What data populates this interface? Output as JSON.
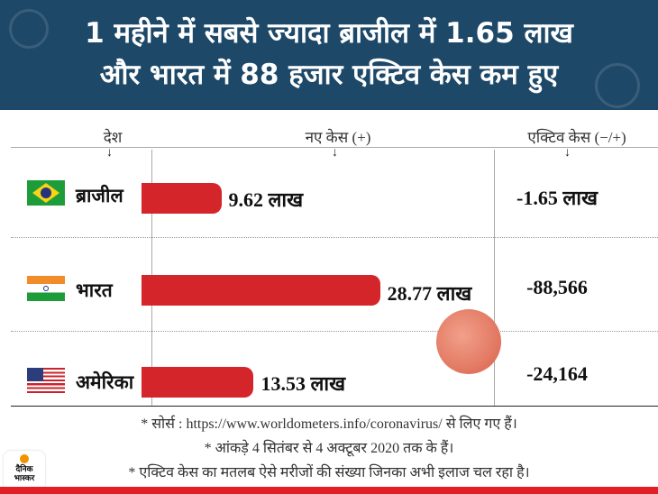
{
  "header": {
    "line1": "1 महीने में सबसे ज्यादा ब्राजील में 1.65 लाख",
    "line2": "और भारत में 88 हजार एक्टिव केस कम हुए"
  },
  "columns": {
    "country": "देश",
    "new_cases": "नए केस (+)",
    "active_cases": "एक्टिव केस (−/+)"
  },
  "chart_data": {
    "type": "bar",
    "title": "1 महीने में सबसे ज्यादा ब्राजील में 1.65 लाख और भारत में 88 हजार एक्टिव केस कम हुए",
    "categories": [
      "ब्राजील",
      "भारत",
      "अमेरिका"
    ],
    "values": [
      9.62,
      28.77,
      13.53
    ],
    "value_labels": [
      "9.62 लाख",
      "28.77 लाख",
      "13.53 लाख"
    ],
    "unit": "लाख",
    "active_change": [
      "-1.65 लाख",
      "-88,566",
      "-24,164"
    ],
    "xlim": [
      0,
      30
    ]
  },
  "footer": {
    "note1": "* सोर्स : https://www.worldometers.info/coronavirus/ से लिए गए हैं।",
    "note2": "* आंकड़े 4 सितंबर से 4 अक्टूबर 2020 तक के हैं।",
    "note3": "* एक्टिव केस का मतलब ऐसे मरीजों की संख्या जिनका अभी इलाज चल रहा है।"
  },
  "logo": {
    "text1": "दैनिक",
    "text2": "भास्कर"
  },
  "colors": {
    "header": "#1d4868",
    "bar": "#d4252b",
    "accent": "#e31e24"
  }
}
